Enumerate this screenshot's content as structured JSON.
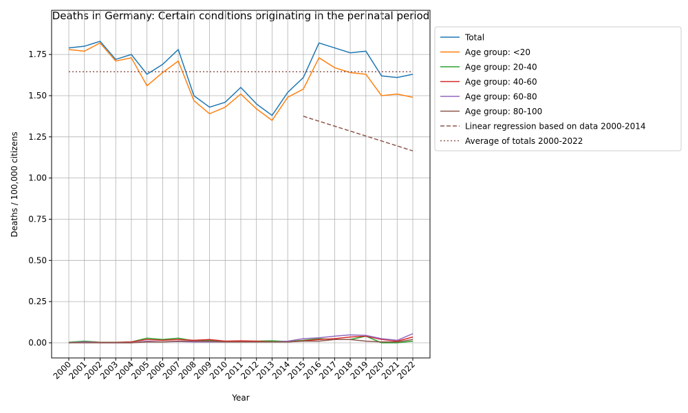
{
  "chart_data": {
    "type": "line",
    "title": "Deaths in Germany: Certain conditions originating in the perinatal period",
    "x_label": "Year",
    "y_label": "Deaths / 100,000 citizens",
    "x": [
      2000,
      2001,
      2002,
      2003,
      2004,
      2005,
      2006,
      2007,
      2008,
      2009,
      2010,
      2011,
      2012,
      2013,
      2014,
      2015,
      2016,
      2017,
      2018,
      2019,
      2020,
      2021,
      2022
    ],
    "series": [
      {
        "name": "Total",
        "color": "#1f77b4",
        "style": "solid",
        "values": [
          1.79,
          1.8,
          1.83,
          1.72,
          1.75,
          1.63,
          1.69,
          1.78,
          1.5,
          1.43,
          1.46,
          1.55,
          1.45,
          1.38,
          1.52,
          1.61,
          1.82,
          1.79,
          1.76,
          1.77,
          1.62,
          1.61,
          1.63
        ]
      },
      {
        "name": "Age group: <20",
        "color": "#ff7f0e",
        "style": "solid",
        "values": [
          1.78,
          1.77,
          1.82,
          1.71,
          1.73,
          1.56,
          1.64,
          1.71,
          1.47,
          1.39,
          1.43,
          1.51,
          1.42,
          1.35,
          1.49,
          1.54,
          1.73,
          1.67,
          1.64,
          1.63,
          1.5,
          1.51,
          1.49
        ]
      },
      {
        "name": "Age group: 20-40",
        "color": "#2ca02c",
        "style": "solid",
        "values": [
          0.003,
          0.01,
          0.003,
          0.003,
          0.005,
          0.028,
          0.02,
          0.028,
          0.012,
          0.015,
          0.01,
          0.01,
          0.01,
          0.012,
          0.008,
          0.015,
          0.025,
          0.02,
          0.02,
          0.04,
          0.0,
          0.0,
          0.01
        ]
      },
      {
        "name": "Age group: 40-60",
        "color": "#d62728",
        "style": "solid",
        "values": [
          0,
          0.005,
          0.002,
          0.002,
          0.005,
          0.02,
          0.015,
          0.02,
          0.015,
          0.02,
          0.01,
          0.012,
          0.01,
          0.005,
          0.005,
          0.012,
          0.02,
          0.025,
          0.035,
          0.04,
          0.02,
          0.01,
          0.035
        ]
      },
      {
        "name": "Age group: 60-80",
        "color": "#9467bd",
        "style": "solid",
        "values": [
          0,
          0.005,
          0,
          0,
          0,
          0.01,
          0.005,
          0.008,
          0.005,
          0.005,
          0.005,
          0.005,
          0.005,
          0.005,
          0.01,
          0.025,
          0.03,
          0.04,
          0.048,
          0.045,
          0.025,
          0.015,
          0.055
        ]
      },
      {
        "name": "Age group: 80-100",
        "color": "#8c564b",
        "style": "solid",
        "values": [
          0,
          0,
          0,
          0,
          0,
          0.005,
          0.005,
          0.01,
          0.01,
          0.01,
          0.005,
          0.005,
          0.005,
          0.005,
          0.005,
          0.01,
          0.01,
          0.02,
          0.02,
          0.01,
          0.005,
          0.005,
          0.02
        ]
      },
      {
        "name": "Linear regression based on data 2000-2014",
        "color": "#8c564b",
        "style": "dashed",
        "values": [
          null,
          null,
          null,
          null,
          null,
          null,
          null,
          null,
          null,
          null,
          null,
          null,
          null,
          null,
          null,
          1.375,
          1.345,
          1.315,
          1.285,
          1.255,
          1.225,
          1.195,
          1.165
        ]
      },
      {
        "name": "Average of totals 2000-2022",
        "color": "#8c564b",
        "style": "dotted",
        "values": [
          1.645,
          1.645,
          1.645,
          1.645,
          1.645,
          1.645,
          1.645,
          1.645,
          1.645,
          1.645,
          1.645,
          1.645,
          1.645,
          1.645,
          1.645,
          1.645,
          1.645,
          1.645,
          1.645,
          1.645,
          1.645,
          1.645,
          1.645
        ]
      }
    ],
    "xlim": [
      1998.9,
      2023.1
    ],
    "ylim": [
      -0.092,
      2.018
    ],
    "xticks": [
      2000,
      2001,
      2002,
      2003,
      2004,
      2005,
      2006,
      2007,
      2008,
      2009,
      2010,
      2011,
      2012,
      2013,
      2014,
      2015,
      2016,
      2017,
      2018,
      2019,
      2020,
      2021,
      2022
    ],
    "yticks": [
      {
        "value": 0,
        "label": "0.00"
      },
      {
        "value": 0.25,
        "label": "0.25"
      },
      {
        "value": 0.5,
        "label": "0.50"
      },
      {
        "value": 0.75,
        "label": "0.75"
      },
      {
        "value": 1.0,
        "label": "1.00"
      },
      {
        "value": 1.25,
        "label": "1.25"
      },
      {
        "value": 1.5,
        "label": "1.50"
      },
      {
        "value": 1.75,
        "label": "1.75"
      }
    ],
    "grid": true,
    "legend": "outside upper right"
  }
}
